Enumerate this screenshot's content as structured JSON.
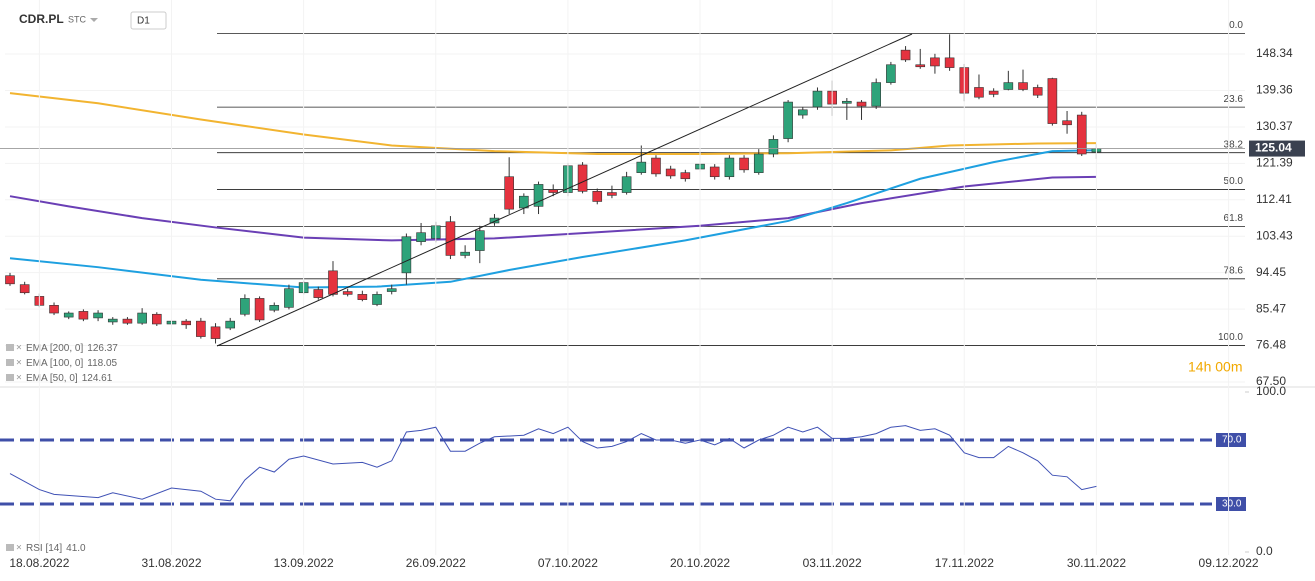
{
  "header": {
    "symbol": "CDR.PL",
    "market": "STC",
    "interval": "D1"
  },
  "timer": "14h 00m",
  "chart_data": [
    {
      "type": "candlestick",
      "up_color": "#2ea37a",
      "down_color": "#e5323f",
      "xlim": [
        -0.34,
        84.12
      ],
      "ylim": [
        67.5,
        161.66
      ],
      "yticks": [
        148.34,
        139.36,
        130.37,
        121.39,
        112.41,
        103.43,
        94.45,
        85.47,
        76.48,
        {
          "value": 67.5,
          "label": "67.50"
        }
      ],
      "candles": [
        {
          "o": 93.7,
          "h": 94.4,
          "l": 91.2,
          "c": 91.7
        },
        {
          "o": 91.5,
          "h": 92.2,
          "l": 89.1,
          "c": 89.5
        },
        {
          "o": 88.6,
          "h": 89.3,
          "l": 85.9,
          "c": 86.4
        },
        {
          "o": 86.4,
          "h": 87.1,
          "l": 84.0,
          "c": 84.5
        },
        {
          "o": 83.5,
          "h": 84.9,
          "l": 83.0,
          "c": 84.5
        },
        {
          "o": 84.9,
          "h": 85.4,
          "l": 82.5,
          "c": 83.0
        },
        {
          "o": 83.3,
          "h": 85.2,
          "l": 82.5,
          "c": 84.5
        },
        {
          "o": 82.3,
          "h": 83.5,
          "l": 81.6,
          "c": 83.0
        },
        {
          "o": 83.0,
          "h": 83.5,
          "l": 81.6,
          "c": 82.0
        },
        {
          "o": 82.0,
          "h": 85.7,
          "l": 81.6,
          "c": 84.5
        },
        {
          "o": 84.2,
          "h": 84.7,
          "l": 81.3,
          "c": 81.8
        },
        {
          "o": 81.8,
          "h": 83.0,
          "l": 81.3,
          "c": 82.5
        },
        {
          "o": 82.5,
          "h": 83.0,
          "l": 80.6,
          "c": 81.6
        },
        {
          "o": 82.5,
          "h": 83.3,
          "l": 78.2,
          "c": 78.7
        },
        {
          "o": 81.1,
          "h": 82.0,
          "l": 77.0,
          "c": 78.2
        },
        {
          "o": 80.8,
          "h": 83.3,
          "l": 80.3,
          "c": 82.5
        },
        {
          "o": 84.2,
          "h": 89.1,
          "l": 83.7,
          "c": 88.1
        },
        {
          "o": 88.1,
          "h": 88.6,
          "l": 82.3,
          "c": 82.8
        },
        {
          "o": 85.2,
          "h": 87.1,
          "l": 84.7,
          "c": 86.4
        },
        {
          "o": 85.9,
          "h": 91.5,
          "l": 85.4,
          "c": 90.5
        },
        {
          "o": 89.5,
          "h": 92.5,
          "l": 89.1,
          "c": 92.0
        },
        {
          "o": 90.3,
          "h": 91.0,
          "l": 87.8,
          "c": 88.3
        },
        {
          "o": 94.9,
          "h": 97.3,
          "l": 88.6,
          "c": 89.1
        },
        {
          "o": 89.8,
          "h": 90.5,
          "l": 88.6,
          "c": 89.1
        },
        {
          "o": 89.1,
          "h": 90.0,
          "l": 87.4,
          "c": 87.8
        },
        {
          "o": 86.6,
          "h": 89.8,
          "l": 86.2,
          "c": 89.1
        },
        {
          "o": 89.8,
          "h": 91.5,
          "l": 89.1,
          "c": 90.5
        },
        {
          "o": 94.4,
          "h": 104.1,
          "l": 91.5,
          "c": 103.3
        },
        {
          "o": 102.1,
          "h": 106.7,
          "l": 101.2,
          "c": 104.3
        },
        {
          "o": 102.9,
          "h": 107.0,
          "l": 101.9,
          "c": 106.0
        },
        {
          "o": 107.0,
          "h": 108.4,
          "l": 97.8,
          "c": 98.7
        },
        {
          "o": 98.7,
          "h": 101.2,
          "l": 98.0,
          "c": 99.5
        },
        {
          "o": 99.9,
          "h": 106.0,
          "l": 96.8,
          "c": 104.8
        },
        {
          "o": 106.7,
          "h": 108.9,
          "l": 106.0,
          "c": 107.9
        },
        {
          "o": 118.1,
          "h": 122.9,
          "l": 108.9,
          "c": 110.1
        },
        {
          "o": 110.4,
          "h": 114.0,
          "l": 108.9,
          "c": 113.3
        },
        {
          "o": 110.8,
          "h": 116.9,
          "l": 108.9,
          "c": 116.2
        },
        {
          "o": 114.9,
          "h": 116.2,
          "l": 113.3,
          "c": 114.2
        },
        {
          "o": 114.2,
          "h": 121.5,
          "l": 113.3,
          "c": 120.8
        },
        {
          "o": 121.0,
          "h": 121.7,
          "l": 114.0,
          "c": 114.5
        },
        {
          "o": 114.5,
          "h": 115.2,
          "l": 111.3,
          "c": 112.0
        },
        {
          "o": 114.2,
          "h": 115.9,
          "l": 112.8,
          "c": 113.5
        },
        {
          "o": 114.2,
          "h": 119.3,
          "l": 113.7,
          "c": 118.1
        },
        {
          "o": 119.1,
          "h": 125.8,
          "l": 118.6,
          "c": 121.7
        },
        {
          "o": 122.7,
          "h": 123.4,
          "l": 118.1,
          "c": 118.8
        },
        {
          "o": 120.0,
          "h": 120.8,
          "l": 117.6,
          "c": 118.3
        },
        {
          "o": 119.1,
          "h": 119.8,
          "l": 116.9,
          "c": 117.6
        },
        {
          "o": 120.0,
          "h": 124.9,
          "l": 119.3,
          "c": 121.2
        },
        {
          "o": 120.5,
          "h": 121.2,
          "l": 117.4,
          "c": 118.1
        },
        {
          "o": 118.1,
          "h": 123.4,
          "l": 117.4,
          "c": 122.7
        },
        {
          "o": 122.7,
          "h": 123.4,
          "l": 119.1,
          "c": 119.8
        },
        {
          "o": 119.1,
          "h": 124.9,
          "l": 118.6,
          "c": 123.7
        },
        {
          "o": 123.7,
          "h": 128.3,
          "l": 122.9,
          "c": 127.3
        },
        {
          "o": 127.5,
          "h": 137.0,
          "l": 126.6,
          "c": 136.5
        },
        {
          "o": 133.3,
          "h": 135.3,
          "l": 132.4,
          "c": 134.6
        },
        {
          "o": 135.3,
          "h": 140.1,
          "l": 134.6,
          "c": 139.2
        },
        {
          "o": 139.2,
          "h": 141.8,
          "l": 133.1,
          "c": 136.0
        },
        {
          "o": 136.2,
          "h": 137.5,
          "l": 132.1,
          "c": 136.7
        },
        {
          "o": 136.5,
          "h": 137.0,
          "l": 132.1,
          "c": 135.5
        },
        {
          "o": 135.5,
          "h": 142.3,
          "l": 134.8,
          "c": 141.3
        },
        {
          "o": 141.3,
          "h": 146.4,
          "l": 140.8,
          "c": 145.7
        },
        {
          "o": 149.3,
          "h": 150.3,
          "l": 146.4,
          "c": 146.9
        },
        {
          "o": 145.7,
          "h": 149.6,
          "l": 144.7,
          "c": 145.2
        },
        {
          "o": 147.4,
          "h": 148.4,
          "l": 143.5,
          "c": 145.4
        },
        {
          "o": 147.4,
          "h": 153.2,
          "l": 144.2,
          "c": 145.0
        },
        {
          "o": 145.0,
          "h": 145.9,
          "l": 136.7,
          "c": 138.7
        },
        {
          "o": 140.1,
          "h": 143.3,
          "l": 137.2,
          "c": 137.7
        },
        {
          "o": 139.2,
          "h": 139.9,
          "l": 137.7,
          "c": 138.4
        },
        {
          "o": 139.6,
          "h": 144.2,
          "l": 139.4,
          "c": 141.3
        },
        {
          "o": 141.3,
          "h": 144.5,
          "l": 139.2,
          "c": 139.6
        },
        {
          "o": 140.1,
          "h": 140.8,
          "l": 137.5,
          "c": 138.2
        },
        {
          "o": 142.3,
          "h": 142.5,
          "l": 130.7,
          "c": 131.2
        },
        {
          "o": 131.9,
          "h": 134.3,
          "l": 128.7,
          "c": 130.9
        },
        {
          "o": 133.3,
          "h": 134.1,
          "l": 123.2,
          "c": 123.7
        },
        {
          "o": 124.2,
          "h": 126.1,
          "l": 122.5,
          "c": 125.04
        }
      ],
      "fib_levels": [
        {
          "label": "0.0",
          "value": 153.4
        },
        {
          "label": "23.6",
          "value": 135.25
        },
        {
          "label": "38.2",
          "value": 124.02
        },
        {
          "label": "50.0",
          "value": 114.94
        },
        {
          "label": "61.8",
          "value": 105.86
        },
        {
          "label": "78.6",
          "value": 92.94
        },
        {
          "label": "100.0",
          "value": 76.48
        }
      ],
      "series": [
        {
          "name": "EMA [200, 0]",
          "color": "#f2b430",
          "x": [
            0,
            6,
            13,
            20,
            26,
            33,
            40,
            47,
            53,
            60,
            64,
            70,
            74
          ],
          "values": [
            138.7,
            136.2,
            132.2,
            128.5,
            125.8,
            124.4,
            123.7,
            123.7,
            123.9,
            124.6,
            125.8,
            126.3,
            126.37
          ]
        },
        {
          "name": "EMA [100, 0]",
          "color": "#6a3fb5",
          "x": [
            0,
            4,
            9,
            14,
            20,
            26,
            33,
            40,
            47,
            53,
            58,
            65,
            71,
            74
          ],
          "values": [
            113.3,
            110.8,
            107.9,
            105.6,
            103.1,
            102.4,
            102.9,
            104.4,
            106.0,
            107.9,
            111.6,
            115.7,
            117.9,
            118.05
          ]
        },
        {
          "name": "EMA [50, 0]",
          "color": "#1ea0e0",
          "x": [
            0,
            6,
            13,
            20,
            25,
            30,
            34,
            39,
            46,
            53,
            57,
            62,
            67,
            71,
            74
          ],
          "values": [
            98.0,
            95.8,
            92.7,
            90.8,
            91.0,
            92.2,
            95.1,
            98.3,
            102.4,
            107.2,
            111.6,
            117.6,
            121.7,
            124.4,
            124.61
          ]
        }
      ]
    },
    {
      "type": "line",
      "xlim": [
        -0.34,
        84.12
      ],
      "ylim": [
        0,
        100
      ],
      "yticks": [
        {
          "value": 100,
          "label": "100.0"
        },
        {
          "value": 0,
          "label": "0.0"
        }
      ],
      "levels": [
        {
          "value": 70,
          "label": "70.0"
        },
        {
          "value": 30,
          "label": "30.0"
        }
      ],
      "xticks": [
        {
          "value": 2,
          "label": "18.08.2022"
        },
        {
          "value": 11,
          "label": "31.08.2022"
        },
        {
          "value": 20,
          "label": "13.09.2022"
        },
        {
          "value": 29,
          "label": "26.09.2022"
        },
        {
          "value": 38,
          "label": "07.10.2022"
        },
        {
          "value": 47,
          "label": "20.10.2022"
        },
        {
          "value": 56,
          "label": "03.11.2022"
        },
        {
          "value": 65,
          "label": "17.11.2022"
        },
        {
          "value": 74,
          "label": "30.11.2022"
        },
        {
          "value": 83,
          "label": "09.12.2022"
        }
      ],
      "series": [
        {
          "name": "RSI [14]",
          "color": "#3f51b5",
          "legend_value": "41.0",
          "x": [
            0,
            2,
            3,
            6,
            7,
            9,
            11,
            13,
            14,
            15,
            16,
            17,
            18,
            19,
            20,
            22,
            24,
            25,
            26,
            27,
            28,
            29,
            30,
            31,
            32,
            33,
            35,
            36,
            37,
            38,
            39,
            40,
            41,
            42,
            43,
            44,
            45,
            46,
            47,
            48,
            49,
            50,
            51,
            52,
            53,
            54,
            55,
            56,
            57,
            58,
            59,
            60,
            61,
            62,
            63,
            64,
            65,
            66,
            67,
            68,
            69,
            70,
            71,
            72,
            73,
            74
          ],
          "values": [
            49,
            39,
            36,
            34,
            37,
            33,
            40,
            38,
            33,
            32,
            45,
            53,
            50,
            58,
            60,
            55,
            56,
            53,
            57,
            75,
            76,
            78,
            63,
            63,
            68,
            72,
            73,
            77,
            74,
            78,
            69,
            65,
            66,
            69,
            74,
            70,
            70,
            68,
            70,
            67,
            71,
            65,
            70,
            73,
            78,
            75,
            78,
            71,
            71,
            72,
            74,
            78,
            79,
            76,
            77,
            73,
            62,
            59,
            59,
            66,
            62,
            57,
            48,
            47,
            39,
            41
          ]
        }
      ]
    }
  ]
}
